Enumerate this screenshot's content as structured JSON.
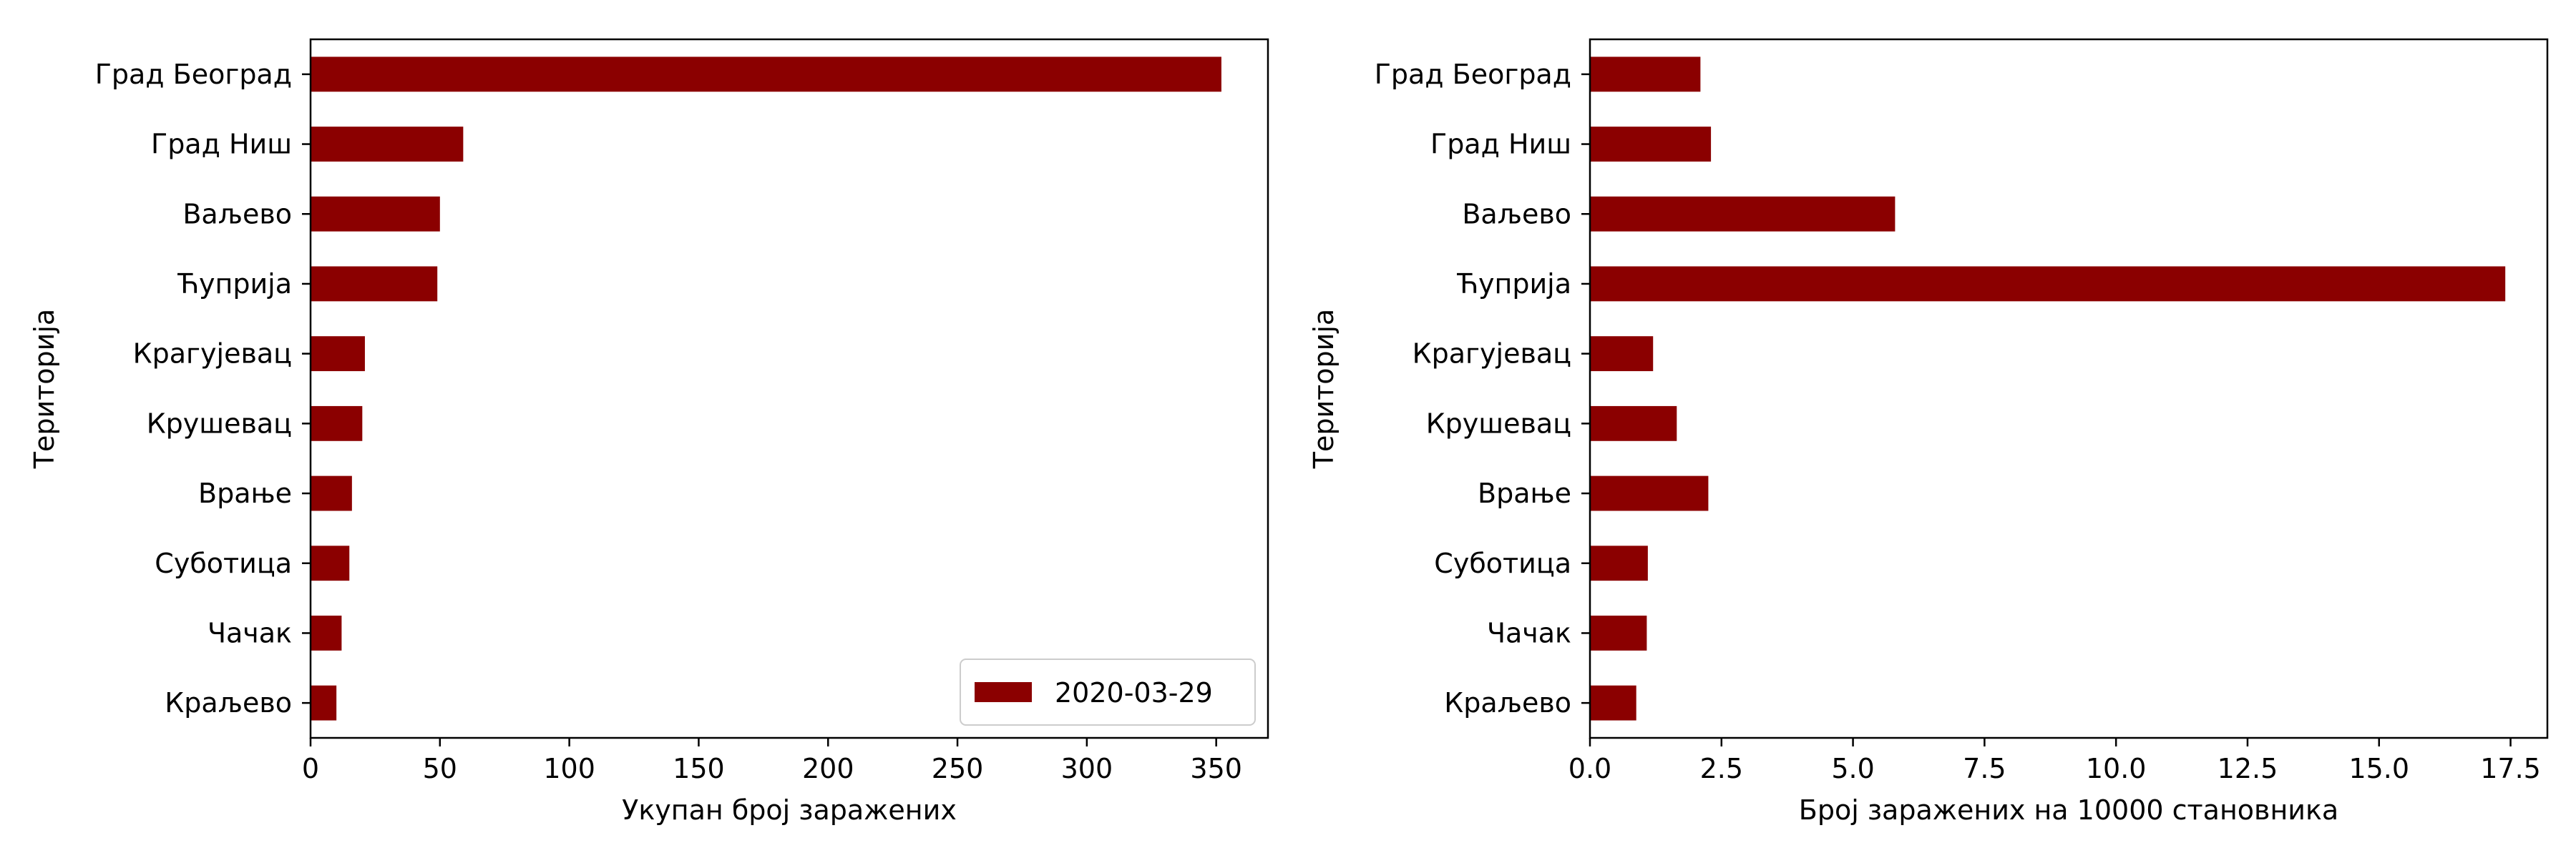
{
  "colors": {
    "bar": "#8b0000",
    "axis": "#000000",
    "background": "#ffffff"
  },
  "chart_data": [
    {
      "type": "bar",
      "orientation": "horizontal",
      "categories": [
        "Град Београд",
        "Град Ниш",
        "Ваљево",
        "Ћуприја",
        "Крагујевац",
        "Крушевац",
        "Врање",
        "Суботица",
        "Чачак",
        "Краљево"
      ],
      "series": [
        {
          "name": "2020-03-29",
          "values": [
            352,
            59,
            50,
            49,
            21,
            20,
            16,
            15,
            12,
            10
          ]
        }
      ],
      "xlabel": "Укупан број заражених",
      "ylabel": "Територија",
      "xlim": [
        0,
        370
      ],
      "xticks": [
        0,
        50,
        100,
        150,
        200,
        250,
        300,
        350
      ],
      "xtick_labels": [
        "0",
        "50",
        "100",
        "150",
        "200",
        "250",
        "300",
        "350"
      ],
      "legend": {
        "position": "lower-right",
        "entries": [
          "2020-03-29"
        ]
      },
      "grid": false
    },
    {
      "type": "bar",
      "orientation": "horizontal",
      "categories": [
        "Град Београд",
        "Град Ниш",
        "Ваљево",
        "Ћуприја",
        "Крагујевац",
        "Крушевац",
        "Врање",
        "Суботица",
        "Чачак",
        "Краљево"
      ],
      "series": [
        {
          "values": [
            2.1,
            2.3,
            5.8,
            17.4,
            1.2,
            1.65,
            2.25,
            1.1,
            1.08,
            0.88
          ]
        }
      ],
      "xlabel": "Број заражених на 10000 становника",
      "ylabel": "Територија",
      "xlim": [
        0,
        18.2
      ],
      "xticks": [
        0,
        2.5,
        5,
        7.5,
        10,
        12.5,
        15,
        17.5
      ],
      "xtick_labels": [
        "0.0",
        "2.5",
        "5.0",
        "7.5",
        "10.0",
        "12.5",
        "15.0",
        "17.5"
      ],
      "grid": false
    }
  ]
}
